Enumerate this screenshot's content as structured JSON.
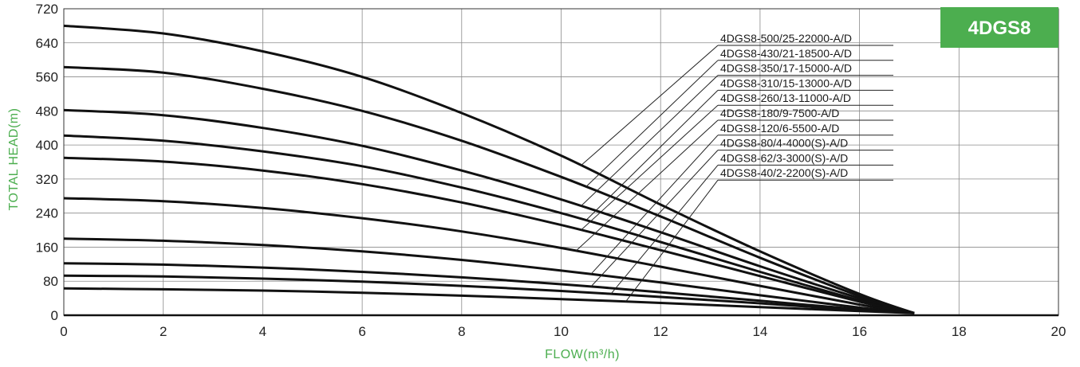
{
  "chart_data": {
    "type": "line",
    "title": "4DGS8",
    "xlabel": "FLOW(m³/h)",
    "ylabel": "TOTAL HEAD(m)",
    "xlim": [
      0,
      20
    ],
    "ylim": [
      0,
      720
    ],
    "xticks": [
      0,
      2,
      4,
      6,
      8,
      10,
      12,
      14,
      16,
      18,
      20
    ],
    "yticks": [
      0,
      80,
      160,
      240,
      320,
      400,
      480,
      560,
      640,
      720
    ],
    "grid": true,
    "legend_position": "top-right",
    "colors": {
      "badge": "#4cae4f",
      "axis_title": "#4cae4f",
      "curve": "#111111",
      "grid": "#8a8a8a"
    },
    "series": [
      {
        "name": "4DGS8-500/25-22000-A/D",
        "x": [
          0,
          2,
          4,
          6,
          8,
          10,
          12,
          14,
          16,
          17.1
        ],
        "values": [
          680,
          662,
          620,
          560,
          475,
          375,
          260,
          150,
          50,
          5
        ]
      },
      {
        "name": "4DGS8-430/21-18500-A/D",
        "x": [
          0,
          2,
          4,
          6,
          8,
          10,
          12,
          14,
          16,
          17.1
        ],
        "values": [
          583,
          570,
          532,
          480,
          410,
          325,
          232,
          135,
          45,
          5
        ]
      },
      {
        "name": "4DGS8-350/17-15000-A/D",
        "x": [
          0,
          2,
          4,
          6,
          8,
          10,
          12,
          14,
          16,
          17.1
        ],
        "values": [
          482,
          470,
          440,
          398,
          340,
          272,
          195,
          115,
          40,
          5
        ]
      },
      {
        "name": "4DGS8-310/15-13000-A/D",
        "x": [
          0,
          2,
          4,
          6,
          8,
          10,
          12,
          14,
          16,
          17.1
        ],
        "values": [
          422,
          410,
          385,
          350,
          300,
          240,
          172,
          102,
          35,
          5
        ]
      },
      {
        "name": "4DGS8-260/13-11000-A/D",
        "x": [
          0,
          2,
          4,
          6,
          8,
          10,
          12,
          14,
          16,
          17.1
        ],
        "values": [
          370,
          361,
          340,
          308,
          265,
          212,
          153,
          92,
          32,
          5
        ]
      },
      {
        "name": "4DGS8-180/9-7500-A/D",
        "x": [
          0,
          2,
          4,
          6,
          8,
          10,
          12,
          14,
          16,
          17.1
        ],
        "values": [
          275,
          268,
          252,
          228,
          197,
          158,
          114,
          69,
          25,
          5
        ]
      },
      {
        "name": "4DGS8-120/6-5500-A/D",
        "x": [
          0,
          2,
          4,
          6,
          8,
          10,
          12,
          14,
          16,
          17.1
        ],
        "values": [
          180,
          175,
          165,
          150,
          130,
          105,
          77,
          47,
          18,
          5
        ]
      },
      {
        "name": "4DGS8-80/4-4000(S)-A/D",
        "x": [
          0,
          2,
          4,
          6,
          8,
          10,
          12,
          14,
          16,
          17.1
        ],
        "values": [
          122,
          119,
          112,
          102,
          89,
          73,
          54,
          34,
          14,
          5
        ]
      },
      {
        "name": "4DGS8-62/3-3000(S)-A/D",
        "x": [
          0,
          2,
          4,
          6,
          8,
          10,
          12,
          14,
          16,
          17.1
        ],
        "values": [
          93,
          91,
          86,
          79,
          69,
          57,
          43,
          28,
          12,
          5
        ]
      },
      {
        "name": "4DGS8-40/2-2200(S)-A/D",
        "x": [
          0,
          2,
          4,
          6,
          8,
          10,
          12,
          14,
          16,
          17.1
        ],
        "values": [
          63,
          61,
          58,
          53,
          46,
          38,
          29,
          19,
          10,
          5
        ]
      }
    ],
    "legend_leader_x": [
      10.4,
      10.5,
      10.4,
      10.5,
      10.4,
      10.3,
      10.6,
      10.6,
      11.0,
      11.3
    ]
  }
}
